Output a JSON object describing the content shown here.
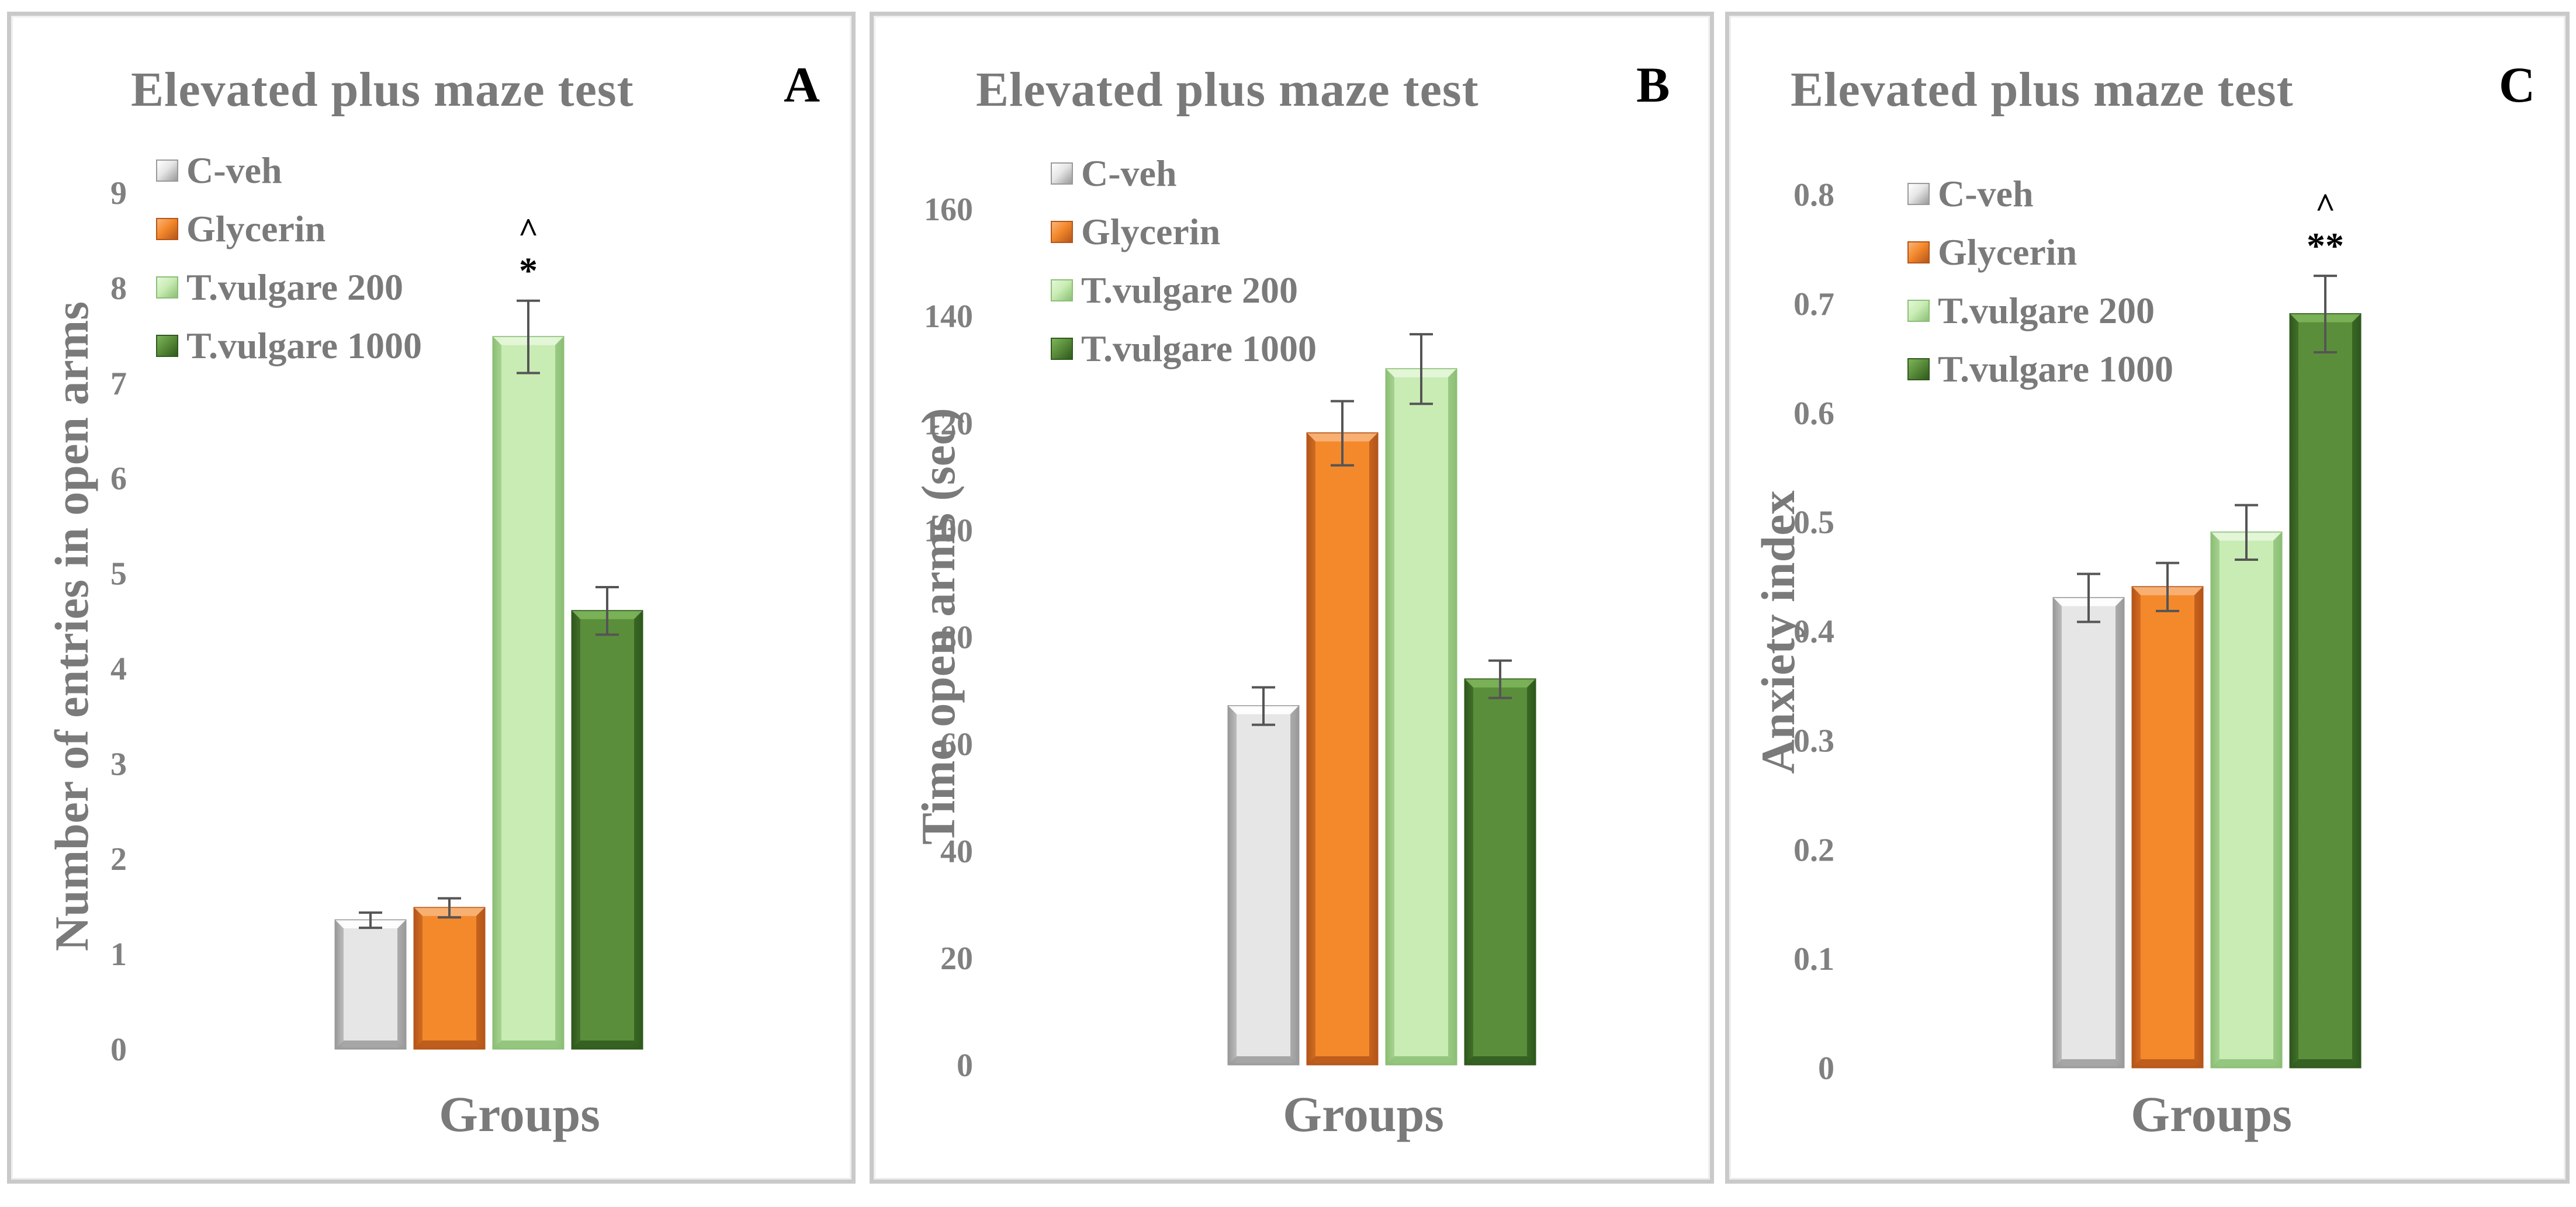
{
  "colors": {
    "c_veh": "#e6e6e6",
    "glycerin": "#f4892c",
    "tv200": "#c9ecb4",
    "tv1000": "#5b8e3b",
    "error_bar": "#555555",
    "axis_text": "#808080"
  },
  "legend": [
    "C-veh",
    "Glycerin",
    "T.vulgare 200",
    "T.vulgare 1000"
  ],
  "chart_data": [
    {
      "panel": "A",
      "type": "bar",
      "title": "Elevated plus maze test",
      "xlabel": "Groups",
      "ylabel": "Number of entries in open arms",
      "ylim": [
        0,
        9
      ],
      "yticks": [
        "0",
        "1",
        "2",
        "3",
        "4",
        "5",
        "6",
        "7",
        "8",
        "9"
      ],
      "categories": [
        "C-veh",
        "Glycerin",
        "T.vulgare 200",
        "T.vulgare 1000"
      ],
      "values": [
        1.35,
        1.48,
        7.48,
        4.6
      ],
      "errors": [
        0.08,
        0.1,
        0.38,
        0.25
      ],
      "annotations": [
        {
          "group": "T.vulgare 200",
          "lines": [
            "^",
            "*"
          ]
        }
      ]
    },
    {
      "panel": "B",
      "type": "bar",
      "title": "Elevated plus maze test",
      "xlabel": "Groups",
      "ylabel": "Time open arms (sec)",
      "ylim": [
        0,
        160
      ],
      "yticks": [
        "0",
        "20",
        "40",
        "60",
        "80",
        "100",
        "120",
        "140",
        "160"
      ],
      "categories": [
        "C-veh",
        "Glycerin",
        "T.vulgare 200",
        "T.vulgare 1000"
      ],
      "values": [
        67,
        118,
        130,
        72
      ],
      "errors": [
        3.5,
        6,
        6.5,
        3.5
      ],
      "annotations": []
    },
    {
      "panel": "C",
      "type": "bar",
      "title": "Elevated plus maze test",
      "xlabel": "Groups",
      "ylabel": "Anxiety index",
      "ylim": [
        0,
        0.8
      ],
      "yticks": [
        "0",
        "0.1",
        "0.2",
        "0.3",
        "0.4",
        "0.5",
        "0.6",
        "0.7",
        "0.8"
      ],
      "categories": [
        "C-veh",
        "Glycerin",
        "T.vulgare 200",
        "T.vulgare 1000"
      ],
      "values": [
        0.43,
        0.44,
        0.49,
        0.69
      ],
      "errors": [
        0.022,
        0.022,
        0.025,
        0.035
      ],
      "annotations": [
        {
          "group": "T.vulgare 1000",
          "lines": [
            "^",
            "**"
          ]
        }
      ]
    }
  ]
}
